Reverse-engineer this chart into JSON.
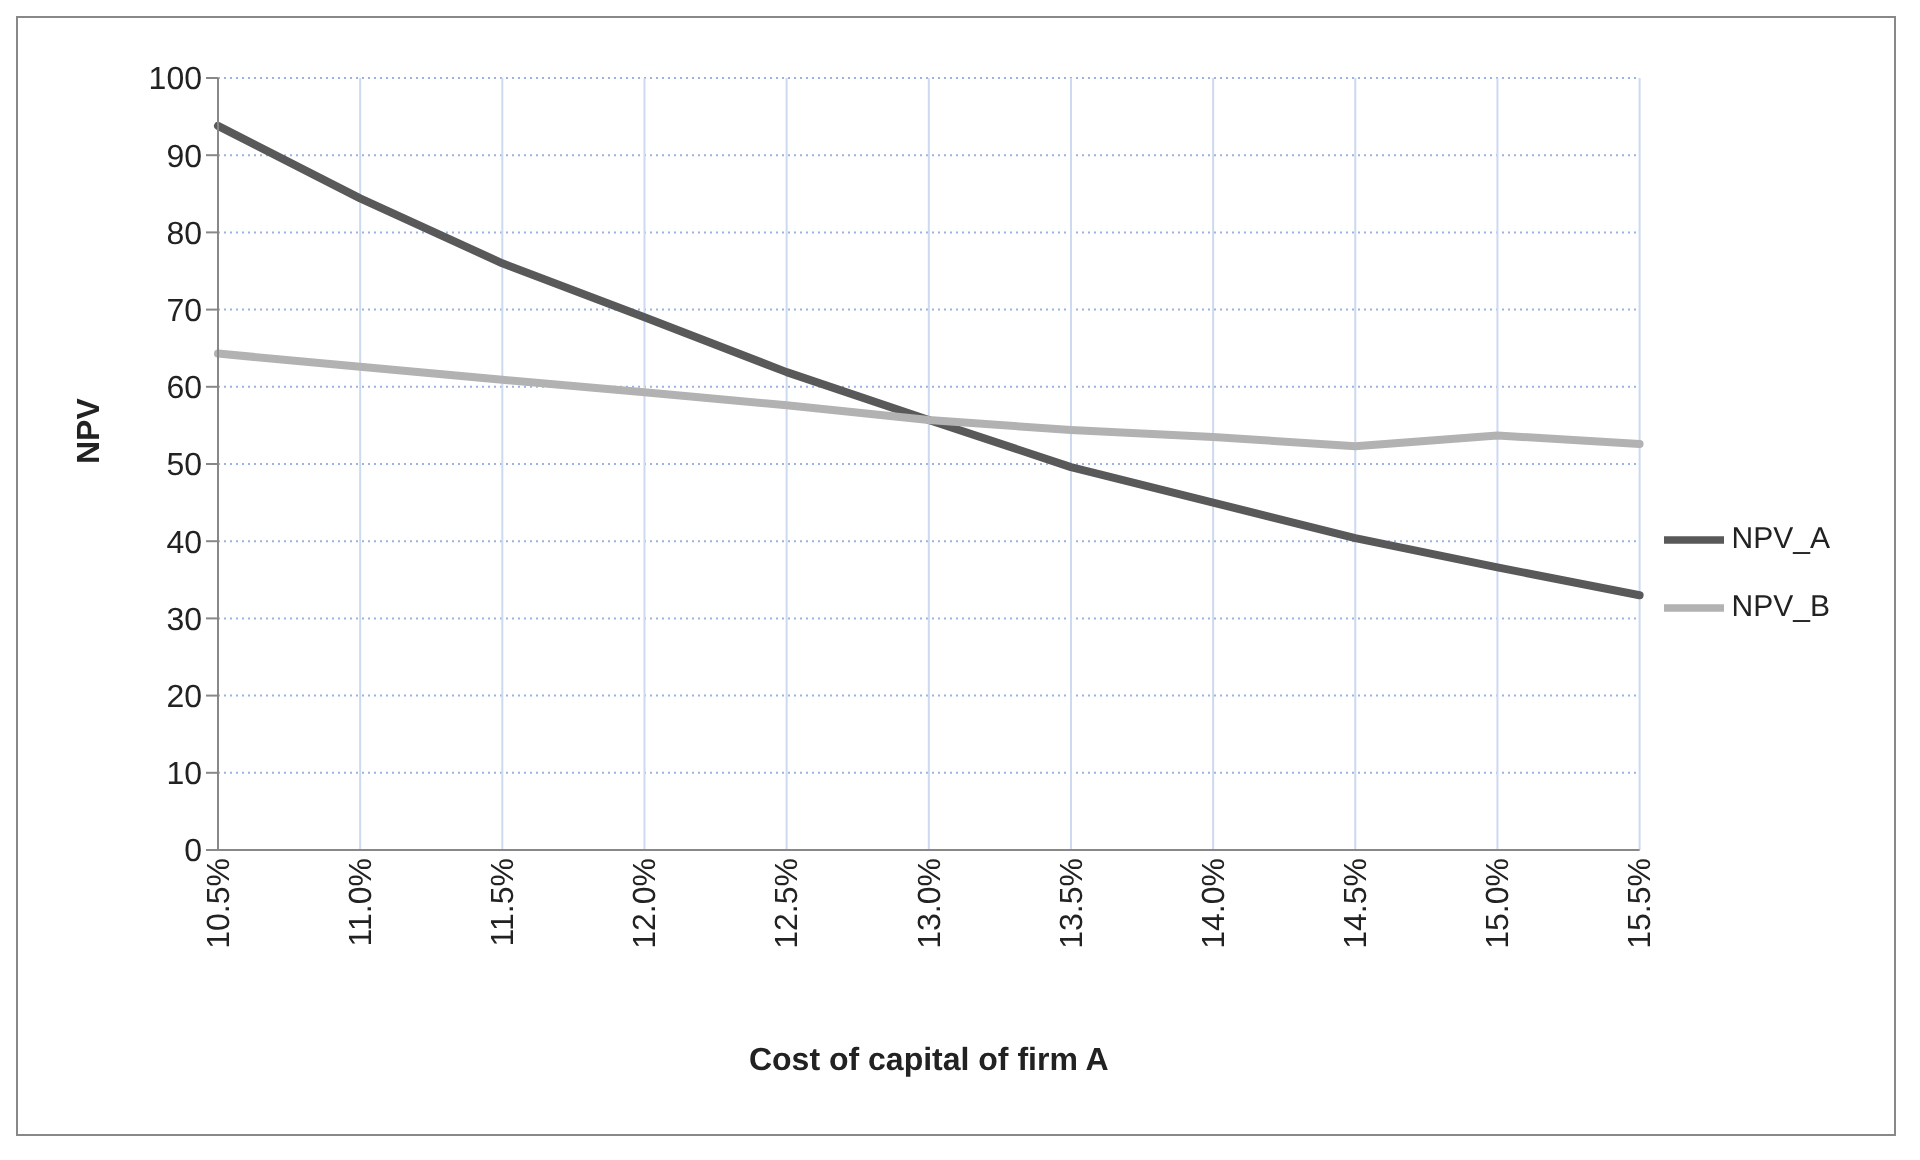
{
  "chart_data": {
    "type": "line",
    "xlabel": "Cost of capital of firm A",
    "ylabel": "NPV",
    "categories": [
      "10.5%",
      "11.0%",
      "11.5%",
      "12.0%",
      "12.5%",
      "13.0%",
      "13.5%",
      "14.0%",
      "14.5%",
      "15.0%",
      "15.5%"
    ],
    "series": [
      {
        "name": "NPV_A",
        "color": "#595959",
        "values": [
          93.8,
          84.4,
          76.0,
          69.0,
          61.9,
          55.7,
          49.6,
          45.0,
          40.4,
          36.6,
          33.0
        ]
      },
      {
        "name": "NPV_B",
        "color": "#b2b2b2",
        "values": [
          64.3,
          62.6,
          60.9,
          59.3,
          57.6,
          55.7,
          54.4,
          53.5,
          52.3,
          53.7,
          52.6
        ]
      }
    ],
    "ylim": [
      0,
      100
    ],
    "yticks": [
      0,
      10,
      20,
      30,
      40,
      50,
      60,
      70,
      80,
      90,
      100
    ],
    "grid": true,
    "legend": "right",
    "marker": "none",
    "line_style": "solid"
  }
}
